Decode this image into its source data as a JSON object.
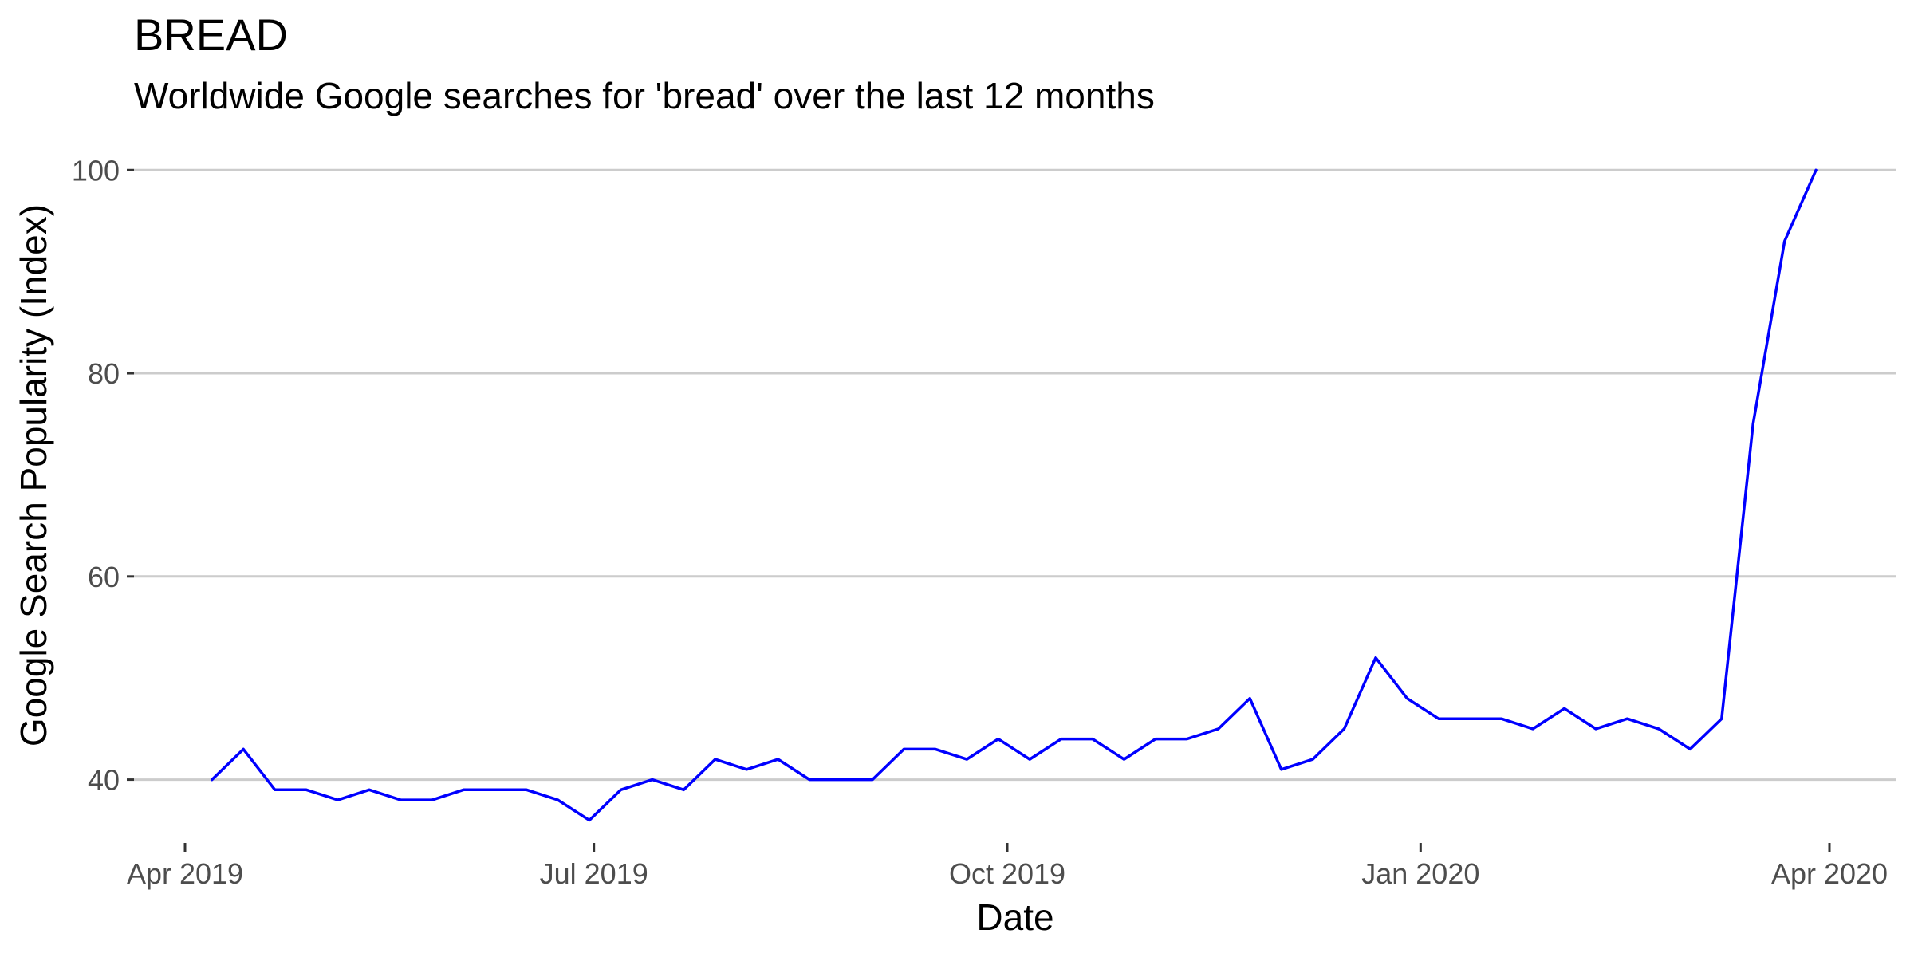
{
  "chart_data": {
    "type": "line",
    "title": "BREAD",
    "subtitle": "Worldwide Google searches for 'bread' over the last 12 months",
    "xlabel": "Date",
    "ylabel": "Google Search Popularity (Index)",
    "x_axis_type": "date",
    "xlim": [
      "2019-04-01",
      "2020-04-01"
    ],
    "ylim": [
      35.1,
      100.1
    ],
    "y_ticks": [
      40,
      60,
      80,
      100
    ],
    "x_ticks": [
      {
        "date": "2019-04-01",
        "label": "Apr 2019"
      },
      {
        "date": "2019-07-01",
        "label": "Jul 2019"
      },
      {
        "date": "2019-10-01",
        "label": "Oct 2019"
      },
      {
        "date": "2020-01-01",
        "label": "Jan 2020"
      },
      {
        "date": "2020-04-01",
        "label": "Apr 2020"
      }
    ],
    "grid": "horizontal major",
    "legend": "none",
    "colors": {
      "line": "#0000ff",
      "grid": "#cccccc",
      "text": "#000000",
      "tick_text": "#4d4d4d"
    },
    "series": [
      {
        "color": "#0000ff",
        "x": [
          "2019-04-07",
          "2019-04-14",
          "2019-04-21",
          "2019-04-28",
          "2019-05-05",
          "2019-05-12",
          "2019-05-19",
          "2019-05-26",
          "2019-06-02",
          "2019-06-09",
          "2019-06-16",
          "2019-06-23",
          "2019-06-30",
          "2019-07-07",
          "2019-07-14",
          "2019-07-21",
          "2019-07-28",
          "2019-08-04",
          "2019-08-11",
          "2019-08-18",
          "2019-08-25",
          "2019-09-01",
          "2019-09-08",
          "2019-09-15",
          "2019-09-22",
          "2019-09-29",
          "2019-10-06",
          "2019-10-13",
          "2019-10-20",
          "2019-10-27",
          "2019-11-03",
          "2019-11-10",
          "2019-11-17",
          "2019-11-24",
          "2019-12-01",
          "2019-12-08",
          "2019-12-15",
          "2019-12-22",
          "2019-12-29",
          "2020-01-05",
          "2020-01-12",
          "2020-01-19",
          "2020-01-26",
          "2020-02-02",
          "2020-02-09",
          "2020-02-16",
          "2020-02-23",
          "2020-03-01",
          "2020-03-08",
          "2020-03-15",
          "2020-03-22",
          "2020-03-29"
        ],
        "y": [
          40,
          43,
          39,
          39,
          38,
          39,
          38,
          38,
          39,
          39,
          39,
          38,
          36,
          39,
          40,
          39,
          42,
          41,
          42,
          40,
          40,
          40,
          43,
          43,
          42,
          44,
          42,
          44,
          44,
          42,
          44,
          44,
          45,
          48,
          41,
          42,
          45,
          52,
          48,
          46,
          46,
          46,
          45,
          47,
          45,
          46,
          45,
          43,
          46,
          75,
          93,
          100
        ]
      }
    ]
  }
}
